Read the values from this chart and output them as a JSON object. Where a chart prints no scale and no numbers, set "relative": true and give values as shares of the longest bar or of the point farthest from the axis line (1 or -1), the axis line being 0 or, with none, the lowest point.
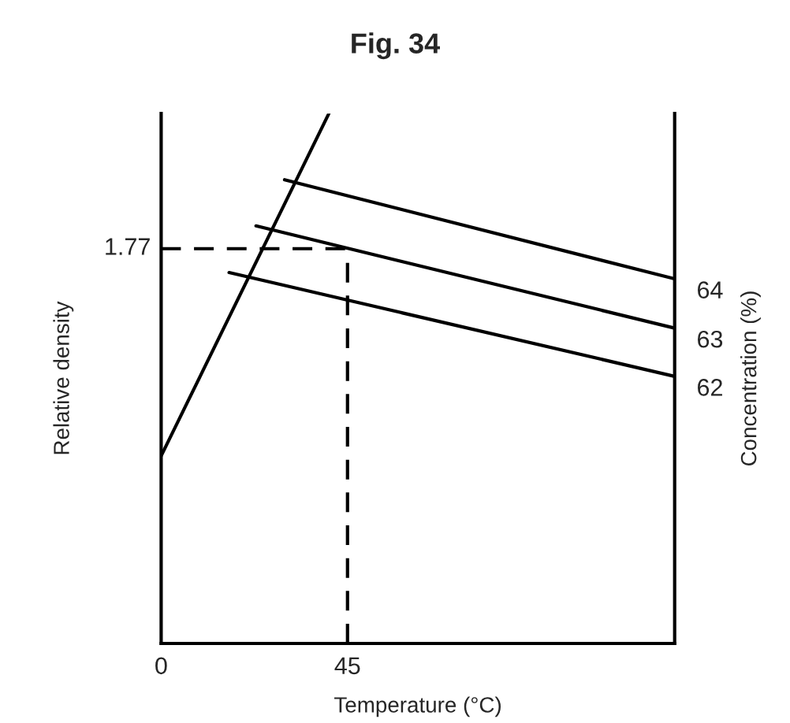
{
  "chart_data": {
    "type": "line",
    "title": "Fig. 34",
    "xlabel": "Temperature (°C)",
    "ylabel": "Relative density",
    "y2label": "Concentration (%)",
    "relative": true,
    "xlim": [
      0,
      124
    ],
    "xticks": [
      0,
      45
    ],
    "series": [
      {
        "color": "#000000",
        "x": [
          0,
          40.5
        ],
        "values": [
          0.354,
          1
        ]
      },
      {
        "name": "64",
        "color": "#000000",
        "x": [
          29.8,
          124
        ],
        "values": [
          0.875,
          0.688
        ]
      },
      {
        "name": "63",
        "color": "#000000",
        "x": [
          22.9,
          124
        ],
        "values": [
          0.788,
          0.595
        ]
      },
      {
        "name": "62",
        "color": "#000000",
        "x": [
          16.4,
          124
        ],
        "values": [
          0.7,
          0.504
        ]
      }
    ],
    "ref_lines": [
      {
        "axis": "y",
        "value": 0.745,
        "line_style": "dashed",
        "color": "#000000"
      },
      {
        "axis": "x",
        "value": 45,
        "line_style": "dashed",
        "color": "#000000"
      }
    ],
    "annotations": [
      "1.77"
    ],
    "grid": false,
    "legend": false,
    "marker": "none",
    "line_style": "solid"
  }
}
